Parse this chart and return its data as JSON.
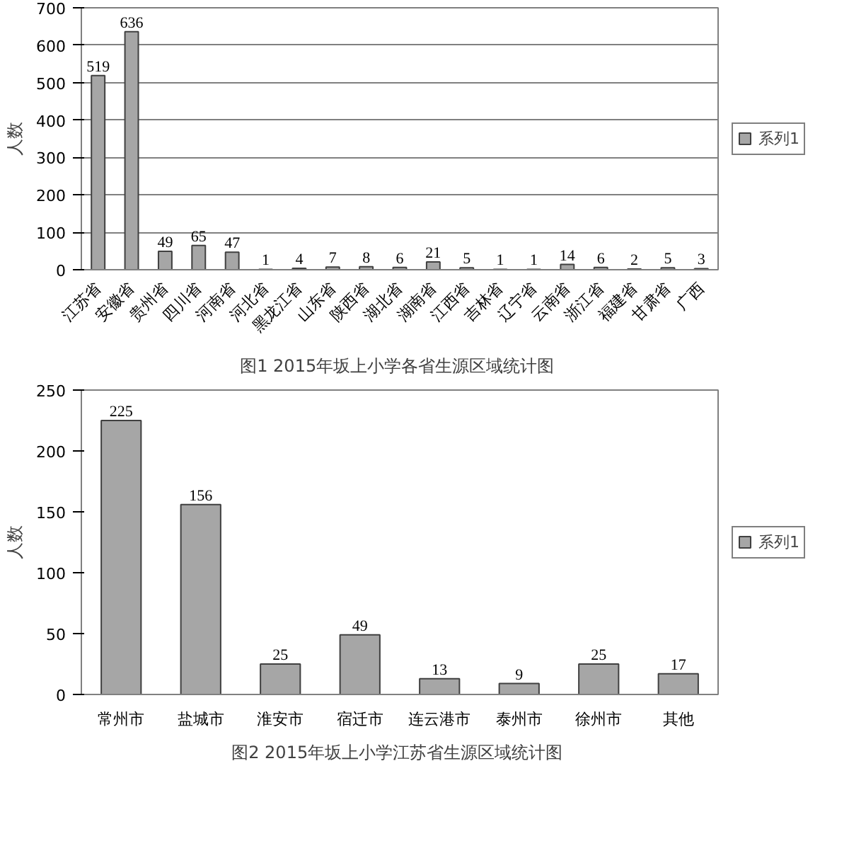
{
  "chart_data": [
    {
      "type": "bar",
      "title": "图1  2015年坂上小学各省生源区域统计图",
      "ylabel": "人数",
      "categories": [
        "江苏省",
        "安徽省",
        "贵州省",
        "四川省",
        "河南省",
        "河北省",
        "黑龙江省",
        "山东省",
        "陕西省",
        "湖北省",
        "湖南省",
        "江西省",
        "吉林省",
        "辽宁省",
        "云南省",
        "浙江省",
        "福建省",
        "甘肃省",
        "广西"
      ],
      "series": [
        {
          "name": "系列1",
          "color": "#a6a6a6",
          "values": [
            519,
            636,
            49,
            65,
            47,
            1,
            4,
            7,
            8,
            6,
            21,
            5,
            1,
            1,
            14,
            6,
            2,
            5,
            3
          ]
        }
      ],
      "ylim": [
        0,
        700
      ],
      "yticks": [
        0,
        100,
        200,
        300,
        400,
        500,
        600,
        700
      ],
      "grid": "y",
      "legend": "right",
      "data_labels": true
    },
    {
      "type": "bar",
      "title": "图2  2015年坂上小学江苏省生源区域统计图",
      "ylabel": "人数",
      "categories": [
        "常州市",
        "盐城市",
        "淮安市",
        "宿迁市",
        "连云港市",
        "泰州市",
        "徐州市",
        "其他"
      ],
      "series": [
        {
          "name": "系列1",
          "color": "#a6a6a6",
          "values": [
            225,
            156,
            25,
            49,
            13,
            9,
            25,
            17
          ]
        }
      ],
      "ylim": [
        0,
        250
      ],
      "yticks": [
        0,
        50,
        100,
        150,
        200,
        250
      ],
      "grid": false,
      "legend": "right",
      "data_labels": true
    }
  ]
}
